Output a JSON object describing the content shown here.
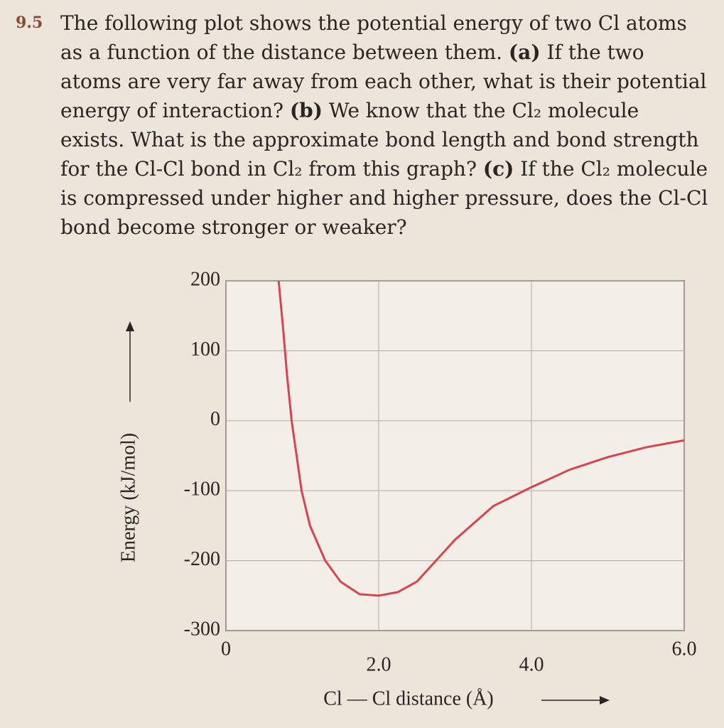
{
  "problem": {
    "number": "9.5",
    "segments": [
      "The following plot shows the potential energy of two Cl atoms as a function of the distance between them. ",
      "(a)",
      " If the two atoms are very far away from each other, what is their potential energy of interaction? ",
      "(b)",
      " We know that the Cl₂ molecule exists. What is the approximate bond length and bond strength for the Cl-Cl bond in Cl₂ from this graph? ",
      "(c)",
      " If the Cl₂ molecule is compressed under higher and higher pressure, does the Cl-Cl bond become stronger or weaker?"
    ]
  },
  "chart_data": {
    "type": "line",
    "ylabel": "Energy (kJ/mol)",
    "xlabel": "Cl — Cl distance (Å)",
    "x": [
      0.69,
      0.75,
      0.8,
      0.86,
      0.99,
      1.1,
      1.3,
      1.5,
      1.75,
      2.0,
      2.25,
      2.5,
      3.0,
      3.5,
      4.0,
      4.5,
      5.0,
      5.5,
      6.0
    ],
    "series": [
      {
        "color": "#d9434f",
        "values": [
          200,
          130,
          65,
          0,
          -100,
          -150,
          -200,
          -230,
          -248,
          -250,
          -245,
          -230,
          -170,
          -122,
          -95,
          -70,
          -52,
          -38,
          -28
        ]
      }
    ],
    "xlim": [
      0,
      6
    ],
    "xticks": [
      0,
      {
        "value": 2,
        "label": "2.0"
      },
      {
        "value": 4,
        "label": "4.0"
      },
      {
        "value": 6,
        "label": "6.0"
      }
    ],
    "ylim": [
      -300,
      200
    ],
    "yticks": [
      -300,
      -200,
      -100,
      0,
      100,
      200
    ],
    "grid": true
  }
}
